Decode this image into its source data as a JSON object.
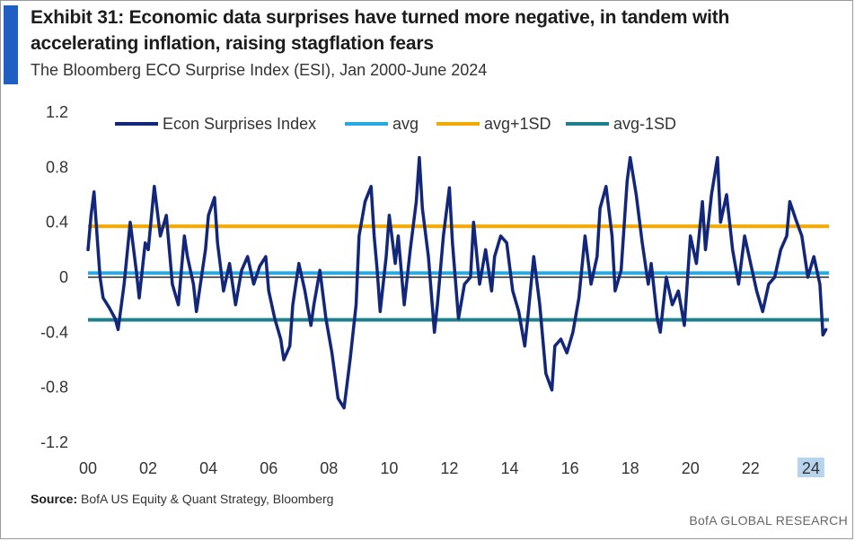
{
  "header": {
    "title": "Exhibit 31: Economic data surprises have turned more negative, in tandem with accelerating inflation, raising stagflation fears",
    "subtitle": "The Bloomberg ECO Surprise Index (ESI), Jan 2000-June 2024"
  },
  "footer": {
    "source_label": "Source:",
    "source_text": " BofA US Equity & Quant Strategy, Bloomberg",
    "brand": "BofA GLOBAL RESEARCH"
  },
  "colors": {
    "series": "#13277a",
    "avg": "#29a9e1",
    "avg_plus": "#f2a900",
    "avg_minus": "#1f7f8c",
    "zero": "#000000",
    "highlight": "#b8d4ec"
  },
  "chart_data": {
    "type": "line",
    "title": "",
    "xlabel": "",
    "ylabel": "",
    "ylim": [
      -1.2,
      1.2
    ],
    "xlim": [
      2000,
      2024.6
    ],
    "y_ticks": [
      "1.2",
      "0.8",
      "0.4",
      "0",
      "-0.4",
      "-0.8",
      "-1.2"
    ],
    "y_tick_values": [
      1.2,
      0.8,
      0.4,
      0,
      -0.4,
      -0.8,
      -1.2
    ],
    "x_ticks": [
      "00",
      "02",
      "04",
      "06",
      "08",
      "10",
      "12",
      "14",
      "16",
      "18",
      "20",
      "22",
      "24"
    ],
    "x_tick_values": [
      2000,
      2002,
      2004,
      2006,
      2008,
      2010,
      2012,
      2014,
      2016,
      2018,
      2020,
      2022,
      2024
    ],
    "highlight_tick": "24",
    "legend": {
      "placement": "top",
      "entries": [
        "Econ Surprises Index",
        "avg",
        "avg+1SD",
        "avg-1SD"
      ]
    },
    "reference_lines": [
      {
        "name": "avg",
        "value": 0.03
      },
      {
        "name": "avg+1SD",
        "value": 0.37
      },
      {
        "name": "avg-1SD",
        "value": -0.31
      }
    ],
    "series": [
      {
        "name": "Econ Surprises Index",
        "x": [
          2000.0,
          2000.1,
          2000.2,
          2000.3,
          2000.4,
          2000.5,
          2000.7,
          2000.9,
          2001.0,
          2001.2,
          2001.4,
          2001.6,
          2001.7,
          2001.9,
          2002.0,
          2002.2,
          2002.4,
          2002.6,
          2002.8,
          2003.0,
          2003.2,
          2003.3,
          2003.5,
          2003.6,
          2003.8,
          2003.9,
          2004.0,
          2004.2,
          2004.3,
          2004.5,
          2004.7,
          2004.9,
          2005.1,
          2005.3,
          2005.5,
          2005.7,
          2005.9,
          2006.0,
          2006.2,
          2006.4,
          2006.5,
          2006.7,
          2006.8,
          2007.0,
          2007.2,
          2007.4,
          2007.5,
          2007.7,
          2007.9,
          2008.1,
          2008.3,
          2008.5,
          2008.7,
          2008.9,
          2009.0,
          2009.2,
          2009.4,
          2009.5,
          2009.6,
          2009.7,
          2009.9,
          2010.0,
          2010.2,
          2010.3,
          2010.5,
          2010.7,
          2010.9,
          2011.0,
          2011.1,
          2011.3,
          2011.5,
          2011.6,
          2011.8,
          2012.0,
          2012.1,
          2012.3,
          2012.5,
          2012.7,
          2012.8,
          2013.0,
          2013.2,
          2013.4,
          2013.5,
          2013.7,
          2013.9,
          2014.1,
          2014.3,
          2014.5,
          2014.6,
          2014.8,
          2015.0,
          2015.2,
          2015.4,
          2015.5,
          2015.7,
          2015.9,
          2016.1,
          2016.3,
          2016.5,
          2016.7,
          2016.9,
          2017.0,
          2017.2,
          2017.4,
          2017.5,
          2017.7,
          2017.9,
          2018.0,
          2018.2,
          2018.4,
          2018.6,
          2018.7,
          2018.9,
          2019.0,
          2019.2,
          2019.4,
          2019.6,
          2019.8,
          2020.0,
          2020.2,
          2020.4,
          2020.5,
          2020.7,
          2020.9,
          2021.0,
          2021.2,
          2021.4,
          2021.6,
          2021.8,
          2022.0,
          2022.2,
          2022.4,
          2022.6,
          2022.8,
          2023.0,
          2023.2,
          2023.3,
          2023.5,
          2023.7,
          2023.9,
          2024.1,
          2024.3,
          2024.4,
          2024.5
        ],
        "values": [
          0.2,
          0.45,
          0.62,
          0.3,
          0.0,
          -0.15,
          -0.22,
          -0.3,
          -0.38,
          -0.05,
          0.4,
          0.05,
          -0.15,
          0.25,
          0.2,
          0.66,
          0.3,
          0.45,
          -0.05,
          -0.2,
          0.3,
          0.15,
          -0.05,
          -0.25,
          0.05,
          0.2,
          0.45,
          0.58,
          0.25,
          -0.1,
          0.1,
          -0.2,
          0.05,
          0.15,
          -0.05,
          0.08,
          0.15,
          -0.1,
          -0.3,
          -0.45,
          -0.6,
          -0.5,
          -0.2,
          0.1,
          -0.1,
          -0.35,
          -0.2,
          0.05,
          -0.3,
          -0.55,
          -0.88,
          -0.95,
          -0.6,
          -0.2,
          0.3,
          0.55,
          0.66,
          0.3,
          0.05,
          -0.25,
          0.15,
          0.45,
          0.1,
          0.3,
          -0.2,
          0.2,
          0.55,
          0.87,
          0.5,
          0.15,
          -0.4,
          -0.2,
          0.3,
          0.65,
          0.25,
          -0.3,
          -0.05,
          0.0,
          0.4,
          -0.05,
          0.2,
          -0.1,
          0.15,
          0.3,
          0.25,
          -0.1,
          -0.25,
          -0.5,
          -0.3,
          0.15,
          -0.2,
          -0.7,
          -0.82,
          -0.5,
          -0.45,
          -0.55,
          -0.4,
          -0.15,
          0.3,
          -0.05,
          0.15,
          0.5,
          0.66,
          0.3,
          -0.1,
          0.05,
          0.7,
          0.87,
          0.6,
          0.25,
          -0.05,
          0.1,
          -0.3,
          -0.4,
          0.0,
          -0.2,
          -0.1,
          -0.35,
          0.3,
          0.1,
          0.55,
          0.2,
          0.6,
          0.87,
          0.4,
          0.6,
          0.2,
          -0.05,
          0.3,
          0.1,
          -0.1,
          -0.25,
          -0.05,
          0.0,
          0.2,
          0.3,
          0.55,
          0.42,
          0.3,
          0.0,
          0.15,
          -0.05,
          -0.42,
          -0.38
        ]
      }
    ]
  }
}
